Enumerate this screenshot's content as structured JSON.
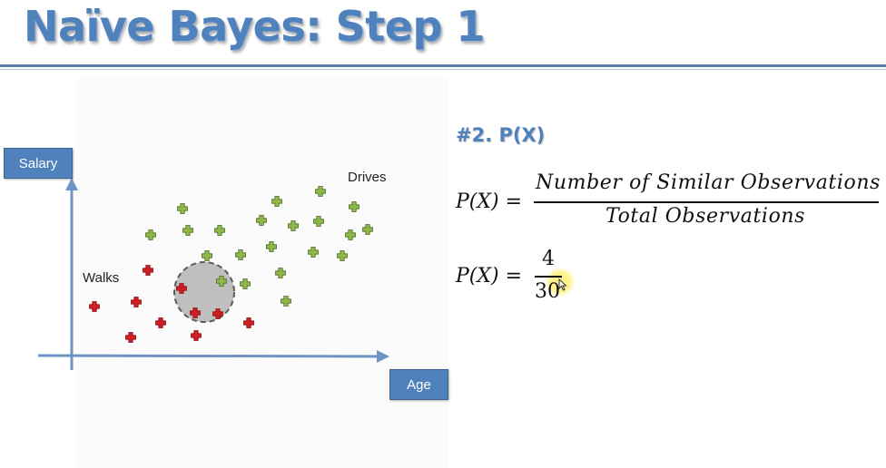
{
  "title": "Naïve Bayes: Step 1",
  "plot": {
    "ylabel": "Salary",
    "xlabel": "Age",
    "class_walks": "Walks",
    "class_drives": "Drives",
    "colors": {
      "walks": "#cc1f24",
      "drives": "#8fb84a",
      "axis": "#6f94c4",
      "circle": "#bfbfbf"
    }
  },
  "formula": {
    "heading": "#2. P(X)",
    "eq1_lhs": "P(X) =",
    "eq1_numerator": "Number of Similar Observations",
    "eq1_denominator": "Total Observations",
    "eq2_lhs": "P(X) =",
    "eq2_numerator": "4",
    "eq2_denominator": "30"
  }
}
